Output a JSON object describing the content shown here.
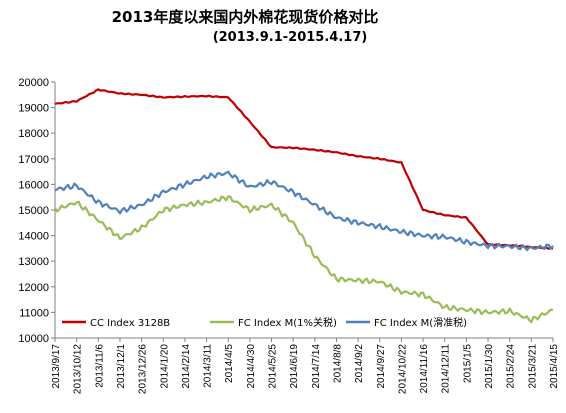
{
  "chart_data": {
    "type": "line",
    "title": "2013年度以来国内外棉花现货价格对比",
    "subtitle": "(2013.9.1-2015.4.17)",
    "xlabel": "",
    "ylabel": "",
    "ylim": [
      10000,
      20000
    ],
    "yticks": [
      10000,
      11000,
      12000,
      13000,
      14000,
      15000,
      16000,
      17000,
      18000,
      19000,
      20000
    ],
    "grid": false,
    "legend_position": "bottom",
    "x_categories": [
      "2013/9/17",
      "2013/10/12",
      "2013/11/6",
      "2013/12/1",
      "2013/12/26",
      "2014/1/20",
      "2014/2/14",
      "2014/3/11",
      "2014/4/5",
      "2014/4/30",
      "2014/5/25",
      "2014/6/19",
      "2014/7/14",
      "2014/8/8",
      "2014/9/2",
      "2014/9/27",
      "2014/10/22",
      "2014/11/16",
      "2014/12/11",
      "2015/1/5",
      "2015/1/30",
      "2015/2/24",
      "2015/3/21",
      "2015/4/15"
    ],
    "series": [
      {
        "name": "CC Index 3128B",
        "color": "#c00000",
        "values": [
          19150,
          19250,
          19700,
          19550,
          19500,
          19400,
          19430,
          19450,
          19400,
          18450,
          17450,
          17430,
          17350,
          17250,
          17100,
          17000,
          16850,
          15000,
          14800,
          14700,
          13650,
          13620,
          13550,
          13500
        ]
      },
      {
        "name": "FC Index M(1%关税)",
        "color": "#9bbb59",
        "values": [
          15000,
          15300,
          14600,
          13900,
          14300,
          15000,
          15200,
          15300,
          15500,
          15000,
          15200,
          14500,
          13200,
          12300,
          12250,
          12200,
          11800,
          11700,
          11200,
          11100,
          11000,
          11050,
          10700,
          11100
        ]
      },
      {
        "name": "FC Index M(滑准税)",
        "color": "#4f81bd",
        "values": [
          15800,
          15950,
          15300,
          14950,
          15200,
          15700,
          16000,
          16300,
          16450,
          15900,
          16100,
          15700,
          15200,
          14700,
          14500,
          14350,
          14150,
          14000,
          13950,
          13750,
          13600,
          13580,
          13500,
          13600
        ]
      }
    ]
  }
}
